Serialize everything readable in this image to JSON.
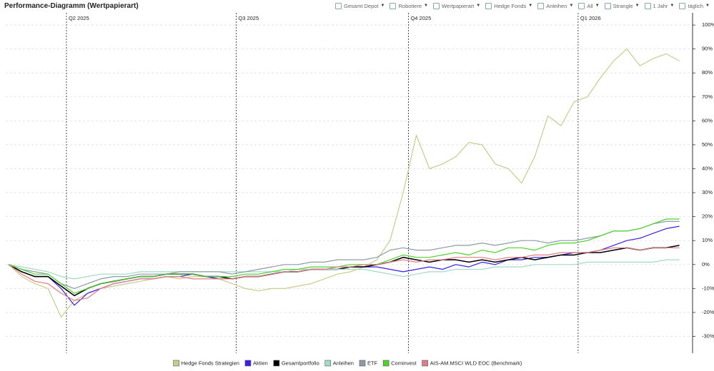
{
  "toolbar": {
    "title": "Performance-Diagramm (Wertpapierart)",
    "controls": [
      "Gesamt Depot",
      "Robotiere",
      "Wertpapierart",
      "Hedge Fonds",
      "Anleihen",
      "All",
      "Strangle",
      "1 Jahr",
      "täglich"
    ]
  },
  "chart_data": {
    "type": "line",
    "x": [
      0,
      1,
      2,
      3,
      4,
      5,
      6,
      7,
      8,
      9,
      10,
      11,
      12,
      13,
      14,
      15,
      16,
      17,
      18,
      19,
      20,
      21,
      22,
      23,
      24,
      25,
      26,
      27,
      28,
      29,
      30,
      31,
      32,
      33,
      34,
      35,
      36,
      37,
      38,
      39,
      40,
      41,
      42,
      43,
      44,
      45,
      46,
      47,
      48,
      49,
      50,
      51
    ],
    "xlim": [
      0,
      52
    ],
    "xticks": [
      {
        "value": 4.4,
        "label": "Q2 2025"
      },
      {
        "value": 17.3,
        "label": "Q3 2025"
      },
      {
        "value": 30.4,
        "label": "Q4 2025"
      },
      {
        "value": 43.3,
        "label": "Q1 2026"
      }
    ],
    "ylim": [
      -37,
      103
    ],
    "yticks": [
      {
        "value": -30,
        "label": "-30%"
      },
      {
        "value": -20,
        "label": "-20%"
      },
      {
        "value": -10,
        "label": "-10%"
      },
      {
        "value": 0,
        "label": "0%"
      },
      {
        "value": 10,
        "label": "10%"
      },
      {
        "value": 20,
        "label": "20%"
      },
      {
        "value": 30,
        "label": "30%"
      },
      {
        "value": 40,
        "label": "40%"
      },
      {
        "value": 50,
        "label": "50%"
      },
      {
        "value": 60,
        "label": "60%"
      },
      {
        "value": 70,
        "label": "70%"
      },
      {
        "value": 80,
        "label": "80%"
      },
      {
        "value": 90,
        "label": "90%"
      },
      {
        "value": 100,
        "label": "100%"
      }
    ],
    "grid": true,
    "legend": "bottom",
    "series": [
      {
        "name": "Hedge Fonds Strategien",
        "color": "#c9cc8c",
        "values": [
          0,
          -5,
          -8,
          -10,
          -22,
          -15,
          -12,
          -10,
          -9,
          -8,
          -7,
          -6,
          -5,
          -6,
          -5,
          -5,
          -6,
          -8,
          -10,
          -11,
          -10,
          -10,
          -9,
          -8,
          -6,
          -4,
          -3,
          -1,
          2,
          10,
          30,
          54,
          40,
          42,
          45,
          51,
          50,
          42,
          40,
          34,
          45,
          62,
          58,
          68,
          70,
          78,
          85,
          90,
          83,
          86,
          88,
          85
        ]
      },
      {
        "name": "Aktien",
        "color": "#3c1fe6",
        "values": [
          0,
          -3,
          -5,
          -5,
          -10,
          -17,
          -12,
          -10,
          -8,
          -7,
          -6,
          -6,
          -5,
          -5,
          -4,
          -5,
          -6,
          -6,
          -5,
          -5,
          -4,
          -3,
          -3,
          -2,
          -2,
          -2,
          -1,
          -1,
          -1,
          -2,
          -3,
          -2,
          -1,
          -2,
          0,
          -1,
          1,
          0,
          2,
          2,
          3,
          3,
          4,
          5,
          5,
          6,
          8,
          10,
          11,
          13,
          15,
          16
        ]
      },
      {
        "name": "Gesamtportfolio",
        "color": "#000000",
        "values": [
          0,
          -3,
          -5,
          -5,
          -9,
          -13,
          -10,
          -8,
          -7,
          -6,
          -5,
          -5,
          -4,
          -4,
          -4,
          -5,
          -5,
          -6,
          -5,
          -5,
          -4,
          -3,
          -3,
          -2,
          -2,
          -2,
          -1,
          -1,
          0,
          1,
          3,
          2,
          1,
          2,
          2,
          1,
          2,
          1,
          2,
          3,
          2,
          3,
          4,
          4,
          5,
          5,
          6,
          7,
          6,
          7,
          7,
          8
        ]
      },
      {
        "name": "Anleihen",
        "color": "#a3d9c9",
        "values": [
          0,
          -1,
          -2,
          -3,
          -5,
          -6,
          -5,
          -4,
          -4,
          -4,
          -3,
          -3,
          -3,
          -3,
          -3,
          -3,
          -3,
          -3,
          -3,
          -3,
          -3,
          -3,
          -2,
          -2,
          -2,
          -2,
          -2,
          -2,
          -3,
          -4,
          -5,
          -4,
          -3,
          -3,
          -2,
          -2,
          -2,
          -1,
          -1,
          -1,
          0,
          0,
          0,
          0,
          1,
          1,
          1,
          1,
          1,
          1,
          2,
          2
        ]
      },
      {
        "name": "ETF",
        "color": "#8d9ba7",
        "values": [
          0,
          -2,
          -3,
          -4,
          -8,
          -10,
          -8,
          -6,
          -5,
          -5,
          -4,
          -4,
          -4,
          -3,
          -3,
          -3,
          -3,
          -4,
          -3,
          -2,
          -1,
          0,
          0,
          1,
          1,
          2,
          2,
          2,
          3,
          6,
          7,
          6,
          6,
          7,
          8,
          8,
          9,
          8,
          9,
          10,
          10,
          9,
          10,
          10,
          11,
          12,
          14,
          14,
          15,
          17,
          18,
          18
        ]
      },
      {
        "name": "Cominvest",
        "color": "#4fd22d",
        "values": [
          0,
          -2,
          -4,
          -4,
          -8,
          -12,
          -10,
          -8,
          -7,
          -6,
          -5,
          -5,
          -4,
          -4,
          -4,
          -5,
          -5,
          -5,
          -4,
          -4,
          -3,
          -2,
          -2,
          -1,
          -1,
          -1,
          0,
          0,
          0,
          2,
          4,
          3,
          3,
          4,
          5,
          4,
          6,
          5,
          7,
          7,
          6,
          8,
          9,
          9,
          10,
          12,
          14,
          14,
          15,
          17,
          19,
          19
        ]
      },
      {
        "name": "AIS-AM.MSCI WLD EOC (Benchmark)",
        "color": "#e27c86",
        "values": [
          0,
          -4,
          -7,
          -8,
          -12,
          -15,
          -14,
          -10,
          -8,
          -7,
          -6,
          -6,
          -5,
          -5,
          -6,
          -6,
          -6,
          -6,
          -5,
          -5,
          -4,
          -3,
          -3,
          -2,
          -2,
          -1,
          -1,
          0,
          0,
          1,
          2,
          1,
          2,
          2,
          3,
          3,
          3,
          2,
          3,
          3,
          4,
          4,
          5,
          5,
          5,
          6,
          7,
          7,
          6,
          7,
          7,
          7
        ]
      }
    ]
  }
}
